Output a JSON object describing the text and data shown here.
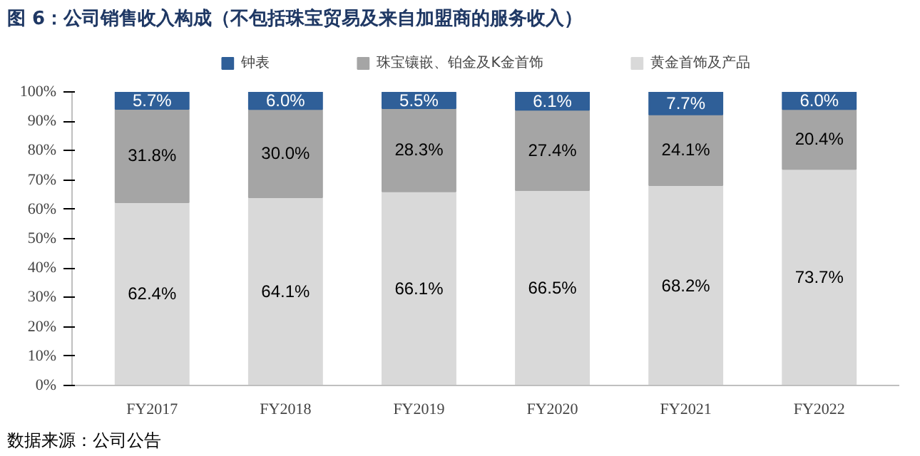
{
  "chart_data": {
    "type": "bar",
    "stacked": true,
    "title": "图 6：公司销售收入构成（不包括珠宝贸易及来自加盟商的服务收入）",
    "categories": [
      "FY2017",
      "FY2018",
      "FY2019",
      "FY2020",
      "FY2021",
      "FY2022"
    ],
    "series": [
      {
        "name": "黄金首饰及产品",
        "color": "#d9d9d9",
        "values": [
          62.4,
          64.1,
          66.1,
          66.5,
          68.2,
          73.7
        ],
        "value_labels": [
          "62.4%",
          "64.1%",
          "66.1%",
          "66.5%",
          "68.2%",
          "73.7%"
        ]
      },
      {
        "name": "珠宝镶嵌、铂金及K金首饰",
        "color": "#a5a5a5",
        "values": [
          31.8,
          30.0,
          28.3,
          27.4,
          24.1,
          20.4
        ],
        "value_labels": [
          "31.8%",
          "30.0%",
          "28.3%",
          "27.4%",
          "24.1%",
          "20.4%"
        ]
      },
      {
        "name": "钟表",
        "color": "#2f5f98",
        "values": [
          5.7,
          6.0,
          5.5,
          6.1,
          7.7,
          6.0
        ],
        "value_labels": [
          "5.7%",
          "6.0%",
          "5.5%",
          "6.1%",
          "7.7%",
          "6.0%"
        ]
      }
    ],
    "ylim": [
      0,
      100
    ],
    "yticks": [
      {
        "value": 0,
        "label": "0%"
      },
      {
        "value": 10,
        "label": "10%"
      },
      {
        "value": 20,
        "label": "20%"
      },
      {
        "value": 30,
        "label": "30%"
      },
      {
        "value": 40,
        "label": "40%"
      },
      {
        "value": 50,
        "label": "50%"
      },
      {
        "value": 60,
        "label": "60%"
      },
      {
        "value": 70,
        "label": "70%"
      },
      {
        "value": 80,
        "label": "80%"
      },
      {
        "value": 90,
        "label": "90%"
      },
      {
        "value": 100,
        "label": "100%"
      }
    ],
    "grid": false,
    "legend": "top",
    "annotations": [
      "数据来源：公司公告"
    ]
  }
}
